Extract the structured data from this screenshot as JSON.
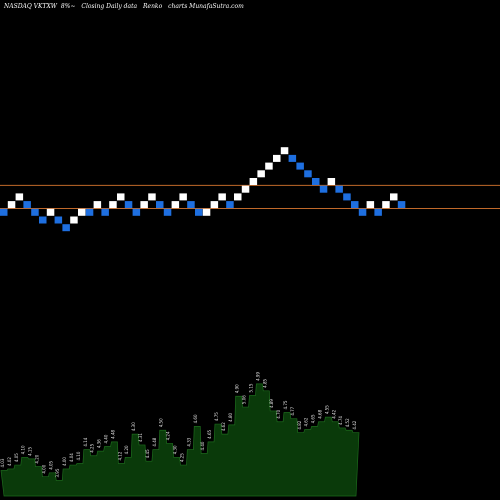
{
  "header": {
    "exchange_ticker": "NASDAQ VKTXW",
    "change": "8%",
    "change_suffix": "~",
    "caption": "Closing Daily data",
    "chart_name": "Renko",
    "site": "charts MunafaSutra.com"
  },
  "colors": {
    "background": "#000000",
    "up_brick": "#ffffff",
    "down_brick": "#1e6fe0",
    "level_line": "#c0692a",
    "volume_fill": "#0a3a0a",
    "volume_stroke": "#1c6a1c",
    "label_text": "#e8e8e8"
  },
  "chart_data": {
    "type": "renko",
    "title": "",
    "brick_levels": [
      1,
      2,
      3,
      2,
      1,
      0,
      1,
      0,
      -1,
      0,
      1,
      1,
      2,
      1,
      2,
      3,
      2,
      1,
      2,
      3,
      2,
      1,
      2,
      3,
      2,
      1,
      1,
      2,
      3,
      2,
      3,
      4,
      5,
      6,
      7,
      8,
      9,
      8,
      7,
      6,
      5,
      4,
      5,
      4,
      3,
      2,
      1,
      2,
      1,
      2,
      3,
      2
    ],
    "brick_directions": [
      "down",
      "up",
      "up",
      "down",
      "down",
      "down",
      "up",
      "down",
      "down",
      "up",
      "up",
      "down",
      "up",
      "down",
      "up",
      "up",
      "down",
      "down",
      "up",
      "up",
      "down",
      "down",
      "up",
      "up",
      "down",
      "down",
      "up",
      "up",
      "up",
      "down",
      "up",
      "up",
      "up",
      "up",
      "up",
      "up",
      "up",
      "down",
      "down",
      "down",
      "down",
      "down",
      "up",
      "down",
      "down",
      "down",
      "down",
      "up",
      "down",
      "up",
      "up",
      "down"
    ],
    "reference_lines": [
      {
        "name": "upper",
        "level": 4.5
      },
      {
        "name": "lower",
        "level": 1.5
      }
    ],
    "volume": {
      "values": [
        4.03,
        4.05,
        4.1,
        4.2,
        4.18,
        4.08,
        3.95,
        4.0,
        3.9,
        4.05,
        4.1,
        4.12,
        4.3,
        4.22,
        4.28,
        4.34,
        4.4,
        4.12,
        4.2,
        4.5,
        4.36,
        4.15,
        4.3,
        4.55,
        4.38,
        4.2,
        4.1,
        4.3,
        4.6,
        4.25,
        4.4,
        4.63,
        4.5,
        4.62,
        4.99,
        4.85,
        5.0,
        5.15,
        5.06,
        4.8,
        4.66,
        4.78,
        4.7,
        4.52,
        4.56,
        4.6,
        4.66,
        4.72,
        4.66,
        4.58,
        4.55,
        4.52
      ],
      "labels": [
        "4.03",
        "4.02",
        "4.05",
        "4.10",
        "4.15",
        "4.20",
        "4.00",
        "4.05",
        "3.95",
        "4.00",
        "4.04",
        "4.10",
        "4.14",
        "4.25",
        "4.36",
        "4.40",
        "4.48",
        "4.12",
        "4.20",
        "4.30",
        "4.31",
        "4.45",
        "4.48",
        "4.50",
        "4.24",
        "4.30",
        "4.25",
        "4.33",
        "4.60",
        "4.40",
        "4.65",
        "4.75",
        "4.62",
        "4.80",
        "4.90",
        "5.06",
        "5.15",
        "4.99",
        "4.85",
        "4.89",
        "4.70",
        "4.75",
        "4.77",
        "4.82",
        "4.62",
        "4.65",
        "4.68",
        "4.55",
        "4.42",
        "4.74",
        "4.52",
        "4.42"
      ],
      "ylim": [
        3.7,
        5.2
      ]
    }
  }
}
